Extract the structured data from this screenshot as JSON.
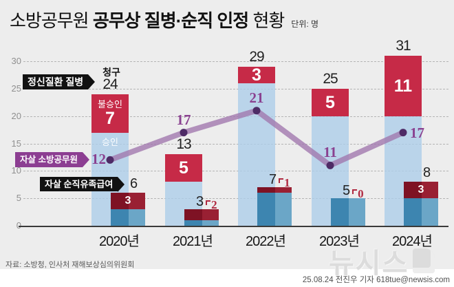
{
  "title": {
    "regular_prefix": "소방공무원 ",
    "bold": "공무상 질병·순직 인정",
    "regular_suffix": " 현황",
    "unit": "단위: 명"
  },
  "callouts": {
    "category_label": "정신질환 질병",
    "claim": "청구",
    "denied": "불승인",
    "approved": "승인",
    "suicide_line": "자살 소방공무원",
    "benefit_label": "자살 순직유족급여"
  },
  "chart_data": {
    "type": "bar+line",
    "categories": [
      "2020년",
      "2021년",
      "2022년",
      "2023년",
      "2024년"
    ],
    "ylim": [
      0,
      30
    ],
    "yticks": [
      0,
      5,
      10,
      15,
      20,
      25,
      30
    ],
    "grid": "dashed-horizontal",
    "series": [
      {
        "name": "정신질환 질병 청구",
        "role": "main-bar-total",
        "values": [
          24,
          13,
          29,
          25,
          31
        ]
      },
      {
        "name": "정신질환 질병 불승인",
        "role": "main-bar-top-segment",
        "values": [
          7,
          5,
          3,
          5,
          11
        ]
      },
      {
        "name": "정신질환 질병 승인",
        "role": "main-bar-bottom-segment",
        "values": [
          17,
          8,
          26,
          20,
          20
        ]
      },
      {
        "name": "자살 소방공무원",
        "role": "line",
        "values": [
          12,
          17,
          21,
          11,
          17
        ]
      },
      {
        "name": "자살 순직유족급여 청구",
        "role": "sub-bar-total",
        "values": [
          6,
          3,
          7,
          5,
          8
        ]
      },
      {
        "name": "자살 순직유족급여 상단(진홍)",
        "role": "sub-bar-top-segment",
        "values": [
          3,
          2,
          1,
          0,
          3
        ]
      },
      {
        "name": "자살 순직유족급여 하단(청색)",
        "role": "sub-bar-bottom-segment",
        "values": [
          3,
          1,
          6,
          5,
          5
        ]
      }
    ]
  },
  "colors": {
    "background": "#ededed",
    "bottom_strip": "#ffffff",
    "crimson": "#c62a47",
    "light_blue": "#badaea",
    "teal_dark": "#3d85b0",
    "teal_light": "#6ba6c7",
    "maroon_dark": "#7e1224",
    "maroon_light": "#992033",
    "purple_line": "#a178ae",
    "purple_dot": "#4e2b66",
    "purple_text": "#8a4190",
    "red_annotation": "#b02940",
    "callout_black": "#111111",
    "callout_purple": "#8c3e92"
  },
  "footer": {
    "source": "자료: 소방청, 인사처 재해보상심의위원회",
    "credit": "25.08.24 전진우 기자 618tue@newsis.com",
    "watermark": "뉴시스"
  }
}
